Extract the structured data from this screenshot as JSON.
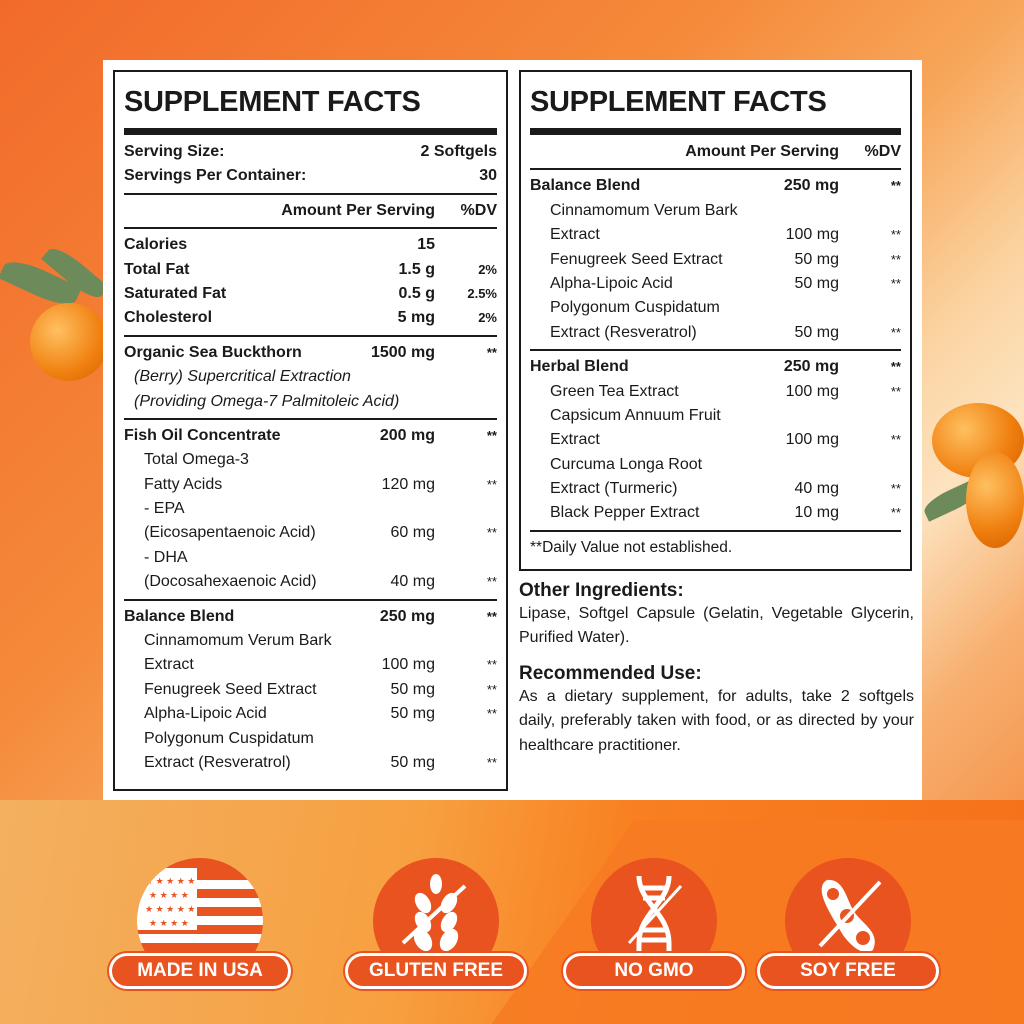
{
  "left_panel": {
    "title": "SUPPLEMENT FACTS",
    "serving": [
      {
        "name": "Serving Size:",
        "amount": "2 Softgels"
      },
      {
        "name": "Servings Per Container:",
        "amount": "30"
      }
    ],
    "header": {
      "amount": "Amount Per Serving",
      "dv": "%DV"
    },
    "sections": [
      [
        {
          "name": "Calories",
          "amount": "15",
          "dv": "",
          "style": "b"
        },
        {
          "name": "Total Fat",
          "amount": "1.5 g",
          "dv": "2%",
          "style": "b"
        },
        {
          "name": "Saturated Fat",
          "amount": "0.5 g",
          "dv": "2.5%",
          "style": "b"
        },
        {
          "name": "Cholesterol",
          "amount": "5 mg",
          "dv": "2%",
          "style": "b"
        }
      ],
      [
        {
          "name": "Organic Sea Buckthorn",
          "amount": "1500 mg",
          "dv": "**",
          "style": "b"
        },
        {
          "name": "(Berry) Supercritical Extraction",
          "amount": "",
          "dv": "",
          "style": "i ind2"
        },
        {
          "name": "(Providing Omega-7 Palmitoleic Acid)",
          "amount": "",
          "dv": "",
          "style": "i ind2"
        }
      ],
      [
        {
          "name": "Fish Oil Concentrate",
          "amount": "200 mg",
          "dv": "**",
          "style": "b"
        },
        {
          "name": "Total Omega-3",
          "amount": "",
          "dv": "",
          "style": "ind"
        },
        {
          "name": "Fatty Acids",
          "amount": "120 mg",
          "dv": "**",
          "style": "ind"
        },
        {
          "name": "- EPA",
          "amount": "",
          "dv": "",
          "style": "ind"
        },
        {
          "name": "(Eicosapentaenoic Acid)",
          "amount": "60 mg",
          "dv": "**",
          "style": "ind"
        },
        {
          "name": "- DHA",
          "amount": "",
          "dv": "",
          "style": "ind"
        },
        {
          "name": "(Docosahexaenoic Acid)",
          "amount": "40 mg",
          "dv": "**",
          "style": "ind"
        }
      ],
      [
        {
          "name": "Balance Blend",
          "amount": "250 mg",
          "dv": "**",
          "style": "b"
        },
        {
          "name": "Cinnamomum Verum Bark",
          "amount": "",
          "dv": "",
          "style": "ind"
        },
        {
          "name": "Extract",
          "amount": "100 mg",
          "dv": "**",
          "style": "ind"
        },
        {
          "name": "Fenugreek Seed Extract",
          "amount": "50 mg",
          "dv": "**",
          "style": "ind"
        },
        {
          "name": "Alpha-Lipoic Acid",
          "amount": "50 mg",
          "dv": "**",
          "style": "ind"
        },
        {
          "name": "Polygonum Cuspidatum",
          "amount": "",
          "dv": "",
          "style": "ind"
        },
        {
          "name": "Extract (Resveratrol)",
          "amount": "50 mg",
          "dv": "**",
          "style": "ind"
        }
      ]
    ]
  },
  "right_panel": {
    "title": "SUPPLEMENT FACTS",
    "header": {
      "amount": "Amount Per Serving",
      "dv": "%DV"
    },
    "sections": [
      [
        {
          "name": "Balance Blend",
          "amount": "250 mg",
          "dv": "**",
          "style": "b"
        },
        {
          "name": "Cinnamomum Verum Bark",
          "amount": "",
          "dv": "",
          "style": "ind"
        },
        {
          "name": "Extract",
          "amount": "100 mg",
          "dv": "**",
          "style": "ind"
        },
        {
          "name": "Fenugreek Seed Extract",
          "amount": "50 mg",
          "dv": "**",
          "style": "ind"
        },
        {
          "name": "Alpha-Lipoic Acid",
          "amount": "50 mg",
          "dv": "**",
          "style": "ind"
        },
        {
          "name": "Polygonum Cuspidatum",
          "amount": "",
          "dv": "",
          "style": "ind"
        },
        {
          "name": "Extract (Resveratrol)",
          "amount": "50 mg",
          "dv": "**",
          "style": "ind"
        }
      ],
      [
        {
          "name": "Herbal Blend",
          "amount": "250 mg",
          "dv": "**",
          "style": "b"
        },
        {
          "name": "Green Tea Extract",
          "amount": "100 mg",
          "dv": "**",
          "style": "ind"
        },
        {
          "name": "Capsicum Annuum Fruit",
          "amount": "",
          "dv": "",
          "style": "ind"
        },
        {
          "name": "Extract",
          "amount": "100 mg",
          "dv": "**",
          "style": "ind"
        },
        {
          "name": "Curcuma Longa Root",
          "amount": "",
          "dv": "",
          "style": "ind"
        },
        {
          "name": "Extract (Turmeric)",
          "amount": "40 mg",
          "dv": "**",
          "style": "ind"
        },
        {
          "name": "Black Pepper Extract",
          "amount": "10 mg",
          "dv": "**",
          "style": "ind"
        }
      ]
    ],
    "footnote": "**Daily Value not established."
  },
  "other_ingredients": {
    "heading": "Other Ingredients:",
    "text": "Lipase, Softgel Capsule (Gelatin, Vegetable Glycerin, Purified Water)."
  },
  "recommended_use": {
    "heading": "Recommended Use:",
    "text": "As a dietary supplement, for adults, take 2 softgels daily, preferably taken with food, or as directed by your healthcare practitioner."
  },
  "badges": [
    {
      "label": "MADE IN USA",
      "icon": "us-flag-icon"
    },
    {
      "label": "GLUTEN FREE",
      "icon": "wheat-crossed-icon"
    },
    {
      "label": "NO GMO",
      "icon": "dna-crossed-icon"
    },
    {
      "label": "SOY FREE",
      "icon": "soybean-crossed-icon"
    }
  ],
  "colors": {
    "badge": "#e8531f",
    "background": "#f57a2a"
  }
}
